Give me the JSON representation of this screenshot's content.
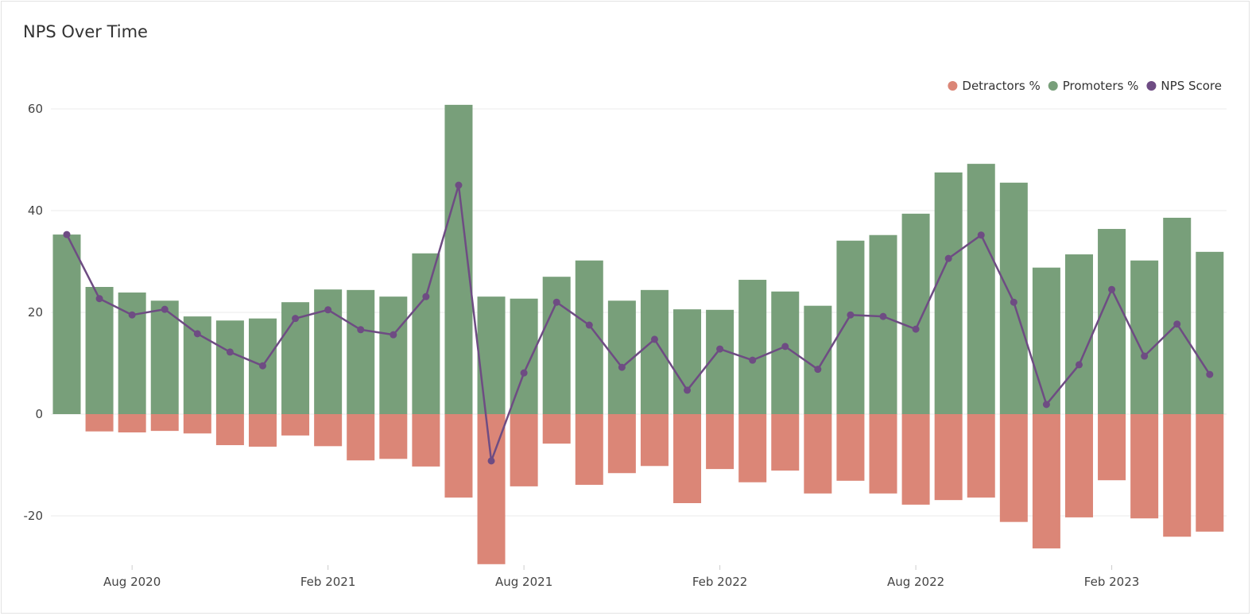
{
  "chart_data": {
    "type": "bar",
    "title": "NPS Over Time",
    "months": [
      "Jun 2020",
      "Jul 2020",
      "Aug 2020",
      "Sep 2020",
      "Oct 2020",
      "Nov 2020",
      "Dec 2020",
      "Jan 2021",
      "Feb 2021",
      "Mar 2021",
      "Apr 2021",
      "May 2021",
      "Jun 2021",
      "Jul 2021",
      "Aug 2021",
      "Sep 2021",
      "Oct 2021",
      "Nov 2021",
      "Dec 2021",
      "Jan 2022",
      "Feb 2022",
      "Mar 2022",
      "Apr 2022",
      "May 2022",
      "Jun 2022",
      "Jul 2022",
      "Aug 2022",
      "Sep 2022",
      "Oct 2022",
      "Nov 2022",
      "Dec 2022",
      "Jan 2023",
      "Feb 2023",
      "Mar 2023",
      "Apr 2023",
      "May 2023"
    ],
    "x_tick_labels": [
      {
        "month": "Aug 2020",
        "label": "Aug 2020"
      },
      {
        "month": "Feb 2021",
        "label": "Feb 2021"
      },
      {
        "month": "Aug 2021",
        "label": "Aug 2021"
      },
      {
        "month": "Feb 2022",
        "label": "Feb 2022"
      },
      {
        "month": "Aug 2022",
        "label": "Aug 2022"
      },
      {
        "month": "Feb 2023",
        "label": "Feb 2023"
      }
    ],
    "y_ticks": [
      60,
      40,
      20,
      0,
      -20
    ],
    "ylim": [
      -30,
      65
    ],
    "grid": true,
    "legend_position": "top-right",
    "series": [
      {
        "name": "Detractors %",
        "type": "bar",
        "color": "#DB8677",
        "values": [
          0,
          -3.4,
          -3.6,
          -3.3,
          -3.8,
          -6.1,
          -6.4,
          -4.2,
          -6.3,
          -9.1,
          -8.8,
          -10.3,
          -16.4,
          -29.5,
          -14.2,
          -5.8,
          -13.9,
          -11.6,
          -10.2,
          -17.5,
          -10.8,
          -13.4,
          -11.1,
          -15.6,
          -13.1,
          -15.6,
          -17.8,
          -16.9,
          -16.4,
          -21.2,
          -26.4,
          -20.3,
          -13.0,
          -20.5,
          -24.1,
          -23.1
        ]
      },
      {
        "name": "Promoters %",
        "type": "bar",
        "color": "#789F7A",
        "values": [
          35.3,
          25.0,
          23.9,
          22.3,
          19.2,
          18.4,
          18.8,
          22.0,
          24.5,
          24.4,
          23.1,
          31.6,
          60.8,
          23.1,
          22.7,
          27.0,
          30.2,
          22.3,
          24.4,
          20.6,
          20.5,
          26.4,
          24.1,
          21.3,
          34.1,
          35.2,
          39.4,
          47.5,
          49.2,
          45.5,
          28.8,
          31.4,
          36.4,
          30.2,
          38.6,
          31.9
        ]
      },
      {
        "name": "NPS Score",
        "type": "line",
        "color": "#6E4C83",
        "values": [
          35.3,
          22.7,
          19.5,
          20.6,
          15.8,
          12.2,
          9.5,
          18.8,
          20.5,
          16.6,
          15.6,
          23.1,
          45.0,
          -9.2,
          8.1,
          22.0,
          17.5,
          9.2,
          14.7,
          4.7,
          12.8,
          10.6,
          13.3,
          8.8,
          19.5,
          19.2,
          16.7,
          30.6,
          35.2,
          22.0,
          1.9,
          9.7,
          24.5,
          11.4,
          17.7,
          7.8
        ]
      }
    ]
  }
}
